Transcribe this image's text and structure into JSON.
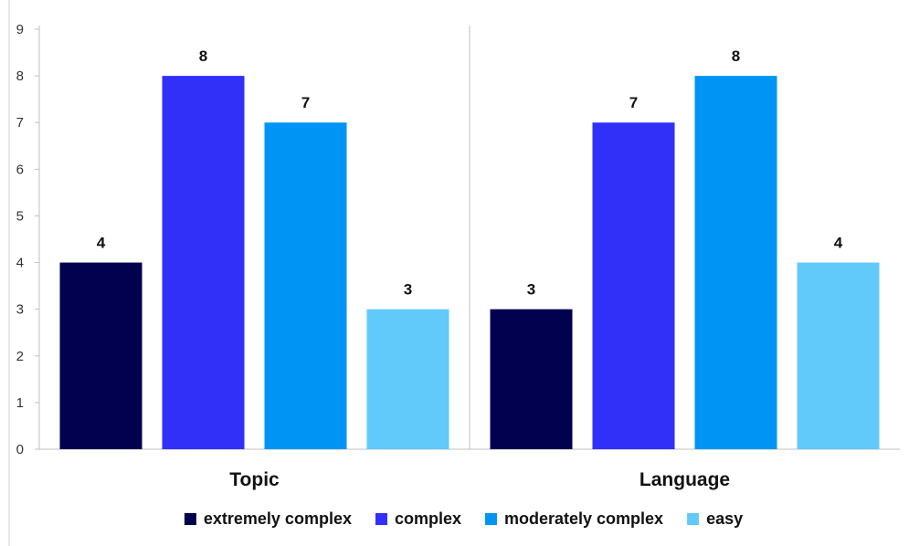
{
  "chart_data": {
    "type": "bar",
    "categories": [
      "Topic",
      "Language"
    ],
    "series": [
      {
        "name": "extremely complex",
        "values": [
          4,
          3
        ],
        "color": "#01014f"
      },
      {
        "name": "complex",
        "values": [
          8,
          7
        ],
        "color": "#3030f9"
      },
      {
        "name": "moderately complex",
        "values": [
          7,
          8
        ],
        "color": "#0094f4"
      },
      {
        "name": "easy",
        "values": [
          3,
          4
        ],
        "color": "#62c9fb"
      }
    ],
    "y_ticks": [
      "0",
      "1",
      "2",
      "3",
      "4",
      "5",
      "6",
      "7",
      "8",
      "9"
    ],
    "ylim": [
      0,
      9
    ],
    "title": "",
    "xlabel": "",
    "ylabel": "",
    "grid": false,
    "legend_position": "bottom",
    "data_labels": true
  }
}
